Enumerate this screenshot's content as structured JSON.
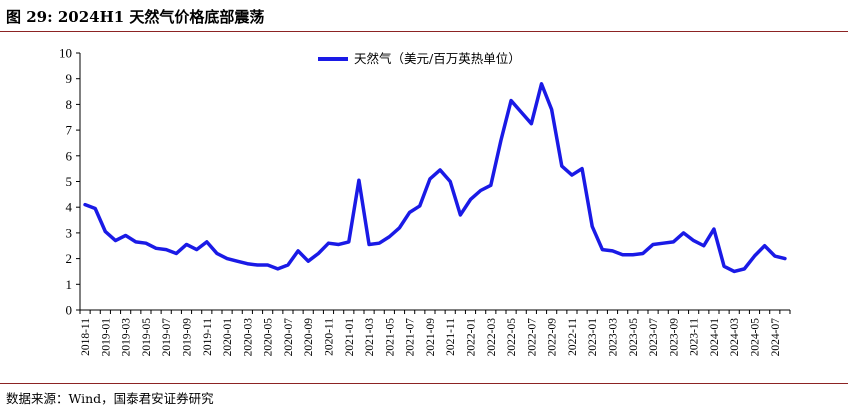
{
  "header": {
    "title": "图 29:  2024H1 天然气价格底部震荡"
  },
  "footer": {
    "source": "数据来源：Wind，国泰君安证券研究"
  },
  "colors": {
    "series": "#1a1ae6",
    "rule": "#8c2323",
    "axis": "#000000"
  },
  "chart_data": {
    "type": "line",
    "title": "2024H1 天然气价格底部震荡",
    "xlabel": "",
    "ylabel": "",
    "ylim": [
      0,
      10
    ],
    "yticks": [
      0,
      1,
      2,
      3,
      4,
      5,
      6,
      7,
      8,
      9,
      10
    ],
    "grid": false,
    "legend": "top-center",
    "x_tick_labels": [
      "2018-11",
      "2019-01",
      "2019-03",
      "2019-05",
      "2019-07",
      "2019-09",
      "2019-11",
      "2020-01",
      "2020-03",
      "2020-05",
      "2020-07",
      "2020-09",
      "2020-11",
      "2021-01",
      "2021-03",
      "2021-05",
      "2021-07",
      "2021-09",
      "2021-11",
      "2022-01",
      "2022-03",
      "2022-05",
      "2022-07",
      "2022-09",
      "2022-11",
      "2023-01",
      "2023-03",
      "2023-05",
      "2023-07",
      "2023-09",
      "2023-11",
      "2024-01",
      "2024-03",
      "2024-05",
      "2024-07"
    ],
    "x": [
      "2018-11",
      "2018-12",
      "2019-01",
      "2019-02",
      "2019-03",
      "2019-04",
      "2019-05",
      "2019-06",
      "2019-07",
      "2019-08",
      "2019-09",
      "2019-10",
      "2019-11",
      "2019-12",
      "2020-01",
      "2020-02",
      "2020-03",
      "2020-04",
      "2020-05",
      "2020-06",
      "2020-07",
      "2020-08",
      "2020-09",
      "2020-10",
      "2020-11",
      "2020-12",
      "2021-01",
      "2021-02",
      "2021-03",
      "2021-04",
      "2021-05",
      "2021-06",
      "2021-07",
      "2021-08",
      "2021-09",
      "2021-10",
      "2021-11",
      "2021-12",
      "2022-01",
      "2022-02",
      "2022-03",
      "2022-04",
      "2022-05",
      "2022-06",
      "2022-07",
      "2022-08",
      "2022-09",
      "2022-10",
      "2022-11",
      "2022-12",
      "2023-01",
      "2023-02",
      "2023-03",
      "2023-04",
      "2023-05",
      "2023-06",
      "2023-07",
      "2023-08",
      "2023-09",
      "2023-10",
      "2023-11",
      "2023-12",
      "2024-01",
      "2024-02",
      "2024-03",
      "2024-04",
      "2024-05",
      "2024-06",
      "2024-07",
      "2024-08"
    ],
    "series": [
      {
        "name": "天然气（美元/百万英热单位）",
        "values": [
          4.1,
          3.95,
          3.05,
          2.7,
          2.9,
          2.65,
          2.6,
          2.4,
          2.35,
          2.2,
          2.55,
          2.35,
          2.65,
          2.2,
          2.0,
          1.9,
          1.8,
          1.75,
          1.75,
          1.6,
          1.75,
          2.3,
          1.9,
          2.2,
          2.6,
          2.55,
          2.65,
          5.05,
          2.55,
          2.6,
          2.85,
          3.2,
          3.8,
          4.05,
          5.1,
          5.45,
          5.0,
          3.7,
          4.3,
          4.65,
          4.85,
          6.6,
          8.15,
          7.7,
          7.25,
          8.8,
          7.8,
          5.6,
          5.25,
          5.5,
          3.25,
          2.35,
          2.3,
          2.15,
          2.15,
          2.2,
          2.55,
          2.6,
          2.65,
          3.0,
          2.7,
          2.5,
          3.15,
          1.7,
          1.5,
          1.6,
          2.1,
          2.5,
          2.1,
          2.0
        ]
      }
    ]
  }
}
